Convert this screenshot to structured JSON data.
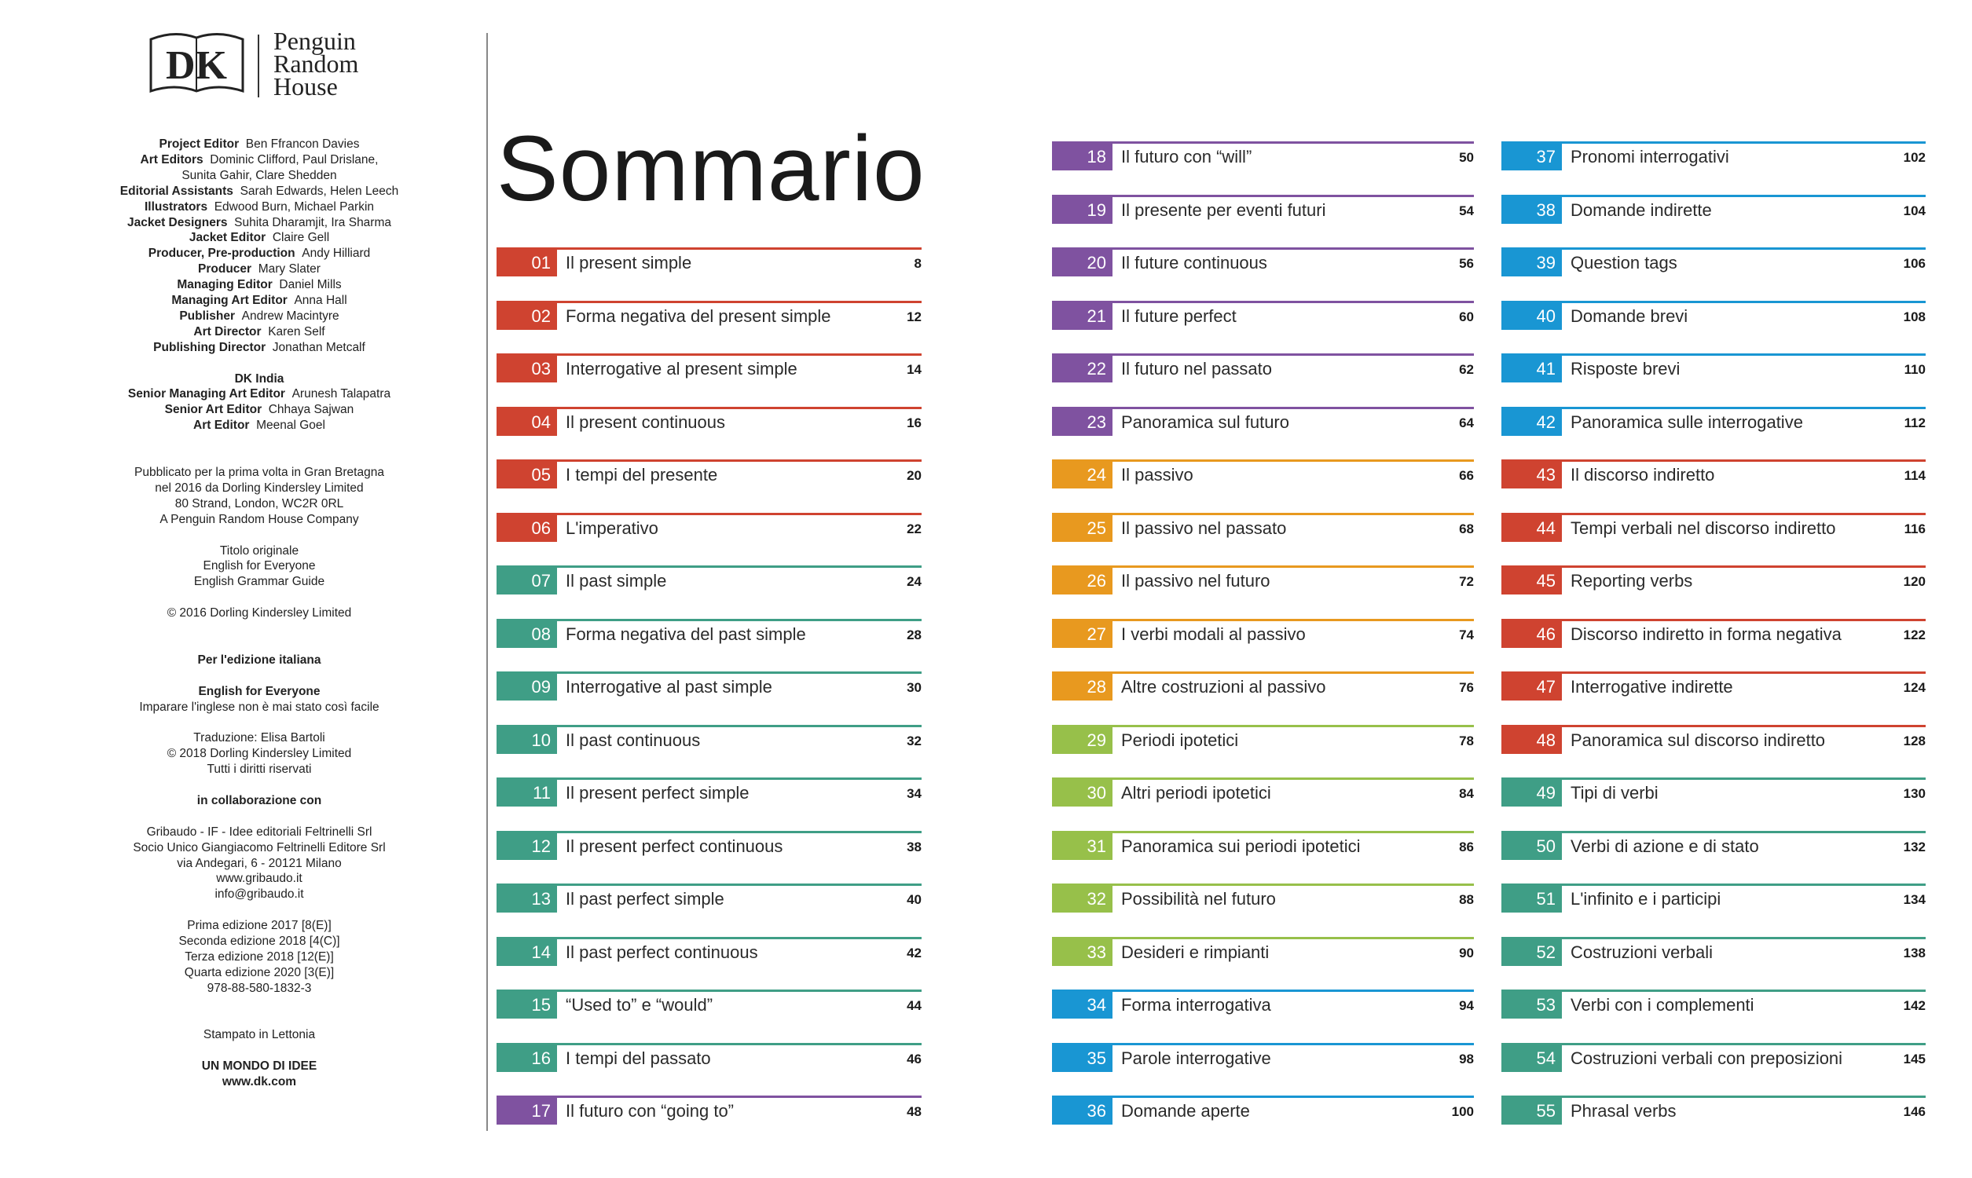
{
  "logo": {
    "mark": "DK",
    "publisher_lines": [
      "Penguin",
      "Random",
      "House"
    ]
  },
  "credits": [
    {
      "role": "Project Editor",
      "name": "Ben Ffrancon Davies"
    },
    {
      "role": "Art Editors",
      "name": "Dominic Clifford, Paul Drislane,"
    },
    {
      "role": "",
      "name": "Sunita Gahir, Clare Shedden"
    },
    {
      "role": "Editorial Assistants",
      "name": "Sarah Edwards, Helen Leech"
    },
    {
      "role": "Illustrators",
      "name": "Edwood Burn, Michael Parkin"
    },
    {
      "role": "Jacket Designers",
      "name": "Suhita Dharamjit, Ira Sharma"
    },
    {
      "role": "Jacket Editor",
      "name": "Claire Gell"
    },
    {
      "role": "Producer, Pre-production",
      "name": "Andy Hilliard"
    },
    {
      "role": "Producer",
      "name": "Mary Slater"
    },
    {
      "role": "Managing Editor",
      "name": "Daniel Mills"
    },
    {
      "role": "Managing Art Editor",
      "name": "Anna Hall"
    },
    {
      "role": "Publisher",
      "name": "Andrew Macintyre"
    },
    {
      "role": "Art Director",
      "name": "Karen Self"
    },
    {
      "role": "Publishing Director",
      "name": "Jonathan Metcalf"
    },
    {
      "gap": true
    },
    {
      "role": "DK India",
      "name": ""
    },
    {
      "role": "Senior Managing Art Editor",
      "name": "Arunesh Talapatra"
    },
    {
      "role": "Senior Art Editor",
      "name": "Chhaya Sajwan"
    },
    {
      "role": "Art Editor",
      "name": "Meenal Goel"
    },
    {
      "gap": true
    },
    {
      "gap": true
    },
    {
      "text": "Pubblicato per la prima volta in Gran Bretagna"
    },
    {
      "text": "nel 2016 da Dorling Kindersley Limited"
    },
    {
      "text": "80 Strand, London, WC2R 0RL"
    },
    {
      "text": "A Penguin Random House Company"
    },
    {
      "gap": true
    },
    {
      "text": "Titolo originale"
    },
    {
      "text": "English for Everyone"
    },
    {
      "text": "English Grammar Guide"
    },
    {
      "gap": true
    },
    {
      "text": "© 2016 Dorling Kindersley Limited"
    },
    {
      "gap": true
    },
    {
      "gap": true
    },
    {
      "bold": "Per l'edizione italiana"
    },
    {
      "gap": true
    },
    {
      "bold": "English for Everyone"
    },
    {
      "text": "Imparare l'inglese non è mai stato così facile"
    },
    {
      "gap": true
    },
    {
      "text": "Traduzione: Elisa Bartoli"
    },
    {
      "text": "© 2018 Dorling Kindersley Limited"
    },
    {
      "text": "Tutti i diritti riservati"
    },
    {
      "gap": true
    },
    {
      "bold": "in collaborazione con"
    },
    {
      "gap": true
    },
    {
      "text": "Gribaudo - IF - Idee editoriali Feltrinelli Srl"
    },
    {
      "text": "Socio Unico Giangiacomo Feltrinelli Editore Srl"
    },
    {
      "text": "via Andegari, 6 - 20121 Milano"
    },
    {
      "text": "www.gribaudo.it"
    },
    {
      "text": "info@gribaudo.it"
    },
    {
      "gap": true
    },
    {
      "text": "Prima edizione 2017 [8(E)]"
    },
    {
      "text": "Seconda edizione 2018 [4(C)]"
    },
    {
      "text": "Terza edizione 2018 [12(E)]"
    },
    {
      "text": "Quarta edizione 2020 [3(E)]"
    },
    {
      "text": "978-88-580-1832-3"
    },
    {
      "gap": true
    },
    {
      "gap": true
    },
    {
      "text": "Stampato in Lettonia"
    },
    {
      "gap": true
    },
    {
      "bold": "UN MONDO DI IDEE"
    },
    {
      "bold": "www.dk.com"
    }
  ],
  "title": "Sommario",
  "colors": {
    "red": "#cf4330",
    "teal": "#3f9e86",
    "purple": "#7f52a0",
    "orange": "#e8991f",
    "green": "#97c04a",
    "blue": "#1996d3"
  },
  "toc": [
    {
      "num": "01",
      "label": "Il present simple",
      "page": "8",
      "color": "red"
    },
    {
      "num": "02",
      "label": "Forma negativa del present simple",
      "page": "12",
      "color": "red"
    },
    {
      "num": "03",
      "label": "Interrogative al present simple",
      "page": "14",
      "color": "red"
    },
    {
      "num": "04",
      "label": "Il present continuous",
      "page": "16",
      "color": "red"
    },
    {
      "num": "05",
      "label": "I tempi del presente",
      "page": "20",
      "color": "red"
    },
    {
      "num": "06",
      "label": "L'imperativo",
      "page": "22",
      "color": "red"
    },
    {
      "num": "07",
      "label": "Il past simple",
      "page": "24",
      "color": "teal"
    },
    {
      "num": "08",
      "label": "Forma negativa del past simple",
      "page": "28",
      "color": "teal"
    },
    {
      "num": "09",
      "label": "Interrogative al past simple",
      "page": "30",
      "color": "teal"
    },
    {
      "num": "10",
      "label": "Il past continuous",
      "page": "32",
      "color": "teal"
    },
    {
      "num": "11",
      "label": "Il present perfect simple",
      "page": "34",
      "color": "teal"
    },
    {
      "num": "12",
      "label": "Il present perfect continuous",
      "page": "38",
      "color": "teal"
    },
    {
      "num": "13",
      "label": "Il past perfect simple",
      "page": "40",
      "color": "teal"
    },
    {
      "num": "14",
      "label": "Il past perfect continuous",
      "page": "42",
      "color": "teal"
    },
    {
      "num": "15",
      "label": "“Used to” e “would”",
      "page": "44",
      "color": "teal"
    },
    {
      "num": "16",
      "label": "I tempi del passato",
      "page": "46",
      "color": "teal"
    },
    {
      "num": "17",
      "label": "Il futuro con “going to”",
      "page": "48",
      "color": "purple"
    },
    {
      "num": "18",
      "label": "Il futuro con “will”",
      "page": "50",
      "color": "purple"
    },
    {
      "num": "19",
      "label": "Il presente per eventi futuri",
      "page": "54",
      "color": "purple"
    },
    {
      "num": "20",
      "label": "Il future continuous",
      "page": "56",
      "color": "purple"
    },
    {
      "num": "21",
      "label": "Il future perfect",
      "page": "60",
      "color": "purple"
    },
    {
      "num": "22",
      "label": "Il futuro nel passato",
      "page": "62",
      "color": "purple"
    },
    {
      "num": "23",
      "label": "Panoramica sul futuro",
      "page": "64",
      "color": "purple"
    },
    {
      "num": "24",
      "label": "Il passivo",
      "page": "66",
      "color": "orange"
    },
    {
      "num": "25",
      "label": "Il passivo nel passato",
      "page": "68",
      "color": "orange"
    },
    {
      "num": "26",
      "label": "Il passivo nel futuro",
      "page": "72",
      "color": "orange"
    },
    {
      "num": "27",
      "label": "I verbi modali al passivo",
      "page": "74",
      "color": "orange"
    },
    {
      "num": "28",
      "label": "Altre costruzioni al passivo",
      "page": "76",
      "color": "orange"
    },
    {
      "num": "29",
      "label": "Periodi ipotetici",
      "page": "78",
      "color": "green"
    },
    {
      "num": "30",
      "label": "Altri periodi ipotetici",
      "page": "84",
      "color": "green"
    },
    {
      "num": "31",
      "label": "Panoramica sui periodi ipotetici",
      "page": "86",
      "color": "green"
    },
    {
      "num": "32",
      "label": "Possibilità nel futuro",
      "page": "88",
      "color": "green"
    },
    {
      "num": "33",
      "label": "Desideri e rimpianti",
      "page": "90",
      "color": "green"
    },
    {
      "num": "34",
      "label": "Forma interrogativa",
      "page": "94",
      "color": "blue"
    },
    {
      "num": "35",
      "label": "Parole interrogative",
      "page": "98",
      "color": "blue"
    },
    {
      "num": "36",
      "label": "Domande aperte",
      "page": "100",
      "color": "blue"
    },
    {
      "num": "37",
      "label": "Pronomi interrogativi",
      "page": "102",
      "color": "blue"
    },
    {
      "num": "38",
      "label": "Domande indirette",
      "page": "104",
      "color": "blue"
    },
    {
      "num": "39",
      "label": "Question tags",
      "page": "106",
      "color": "blue"
    },
    {
      "num": "40",
      "label": "Domande brevi",
      "page": "108",
      "color": "blue"
    },
    {
      "num": "41",
      "label": "Risposte brevi",
      "page": "110",
      "color": "blue"
    },
    {
      "num": "42",
      "label": "Panoramica sulle interrogative",
      "page": "112",
      "color": "blue"
    },
    {
      "num": "43",
      "label": "Il discorso indiretto",
      "page": "114",
      "color": "red"
    },
    {
      "num": "44",
      "label": "Tempi verbali nel discorso indiretto",
      "page": "116",
      "color": "red"
    },
    {
      "num": "45",
      "label": "Reporting verbs",
      "page": "120",
      "color": "red"
    },
    {
      "num": "46",
      "label": "Discorso indiretto in forma negativa",
      "page": "122",
      "color": "red"
    },
    {
      "num": "47",
      "label": "Interrogative indirette",
      "page": "124",
      "color": "red"
    },
    {
      "num": "48",
      "label": "Panoramica sul discorso indiretto",
      "page": "128",
      "color": "red"
    },
    {
      "num": "49",
      "label": "Tipi di verbi",
      "page": "130",
      "color": "teal"
    },
    {
      "num": "50",
      "label": "Verbi di azione e di stato",
      "page": "132",
      "color": "teal"
    },
    {
      "num": "51",
      "label": "L'infinito e i participi",
      "page": "134",
      "color": "teal"
    },
    {
      "num": "52",
      "label": "Costruzioni verbali",
      "page": "138",
      "color": "teal"
    },
    {
      "num": "53",
      "label": "Verbi con i complementi",
      "page": "142",
      "color": "teal"
    },
    {
      "num": "54",
      "label": "Costruzioni verbali con preposizioni",
      "page": "145",
      "color": "teal"
    },
    {
      "num": "55",
      "label": "Phrasal verbs",
      "page": "146",
      "color": "teal"
    }
  ]
}
